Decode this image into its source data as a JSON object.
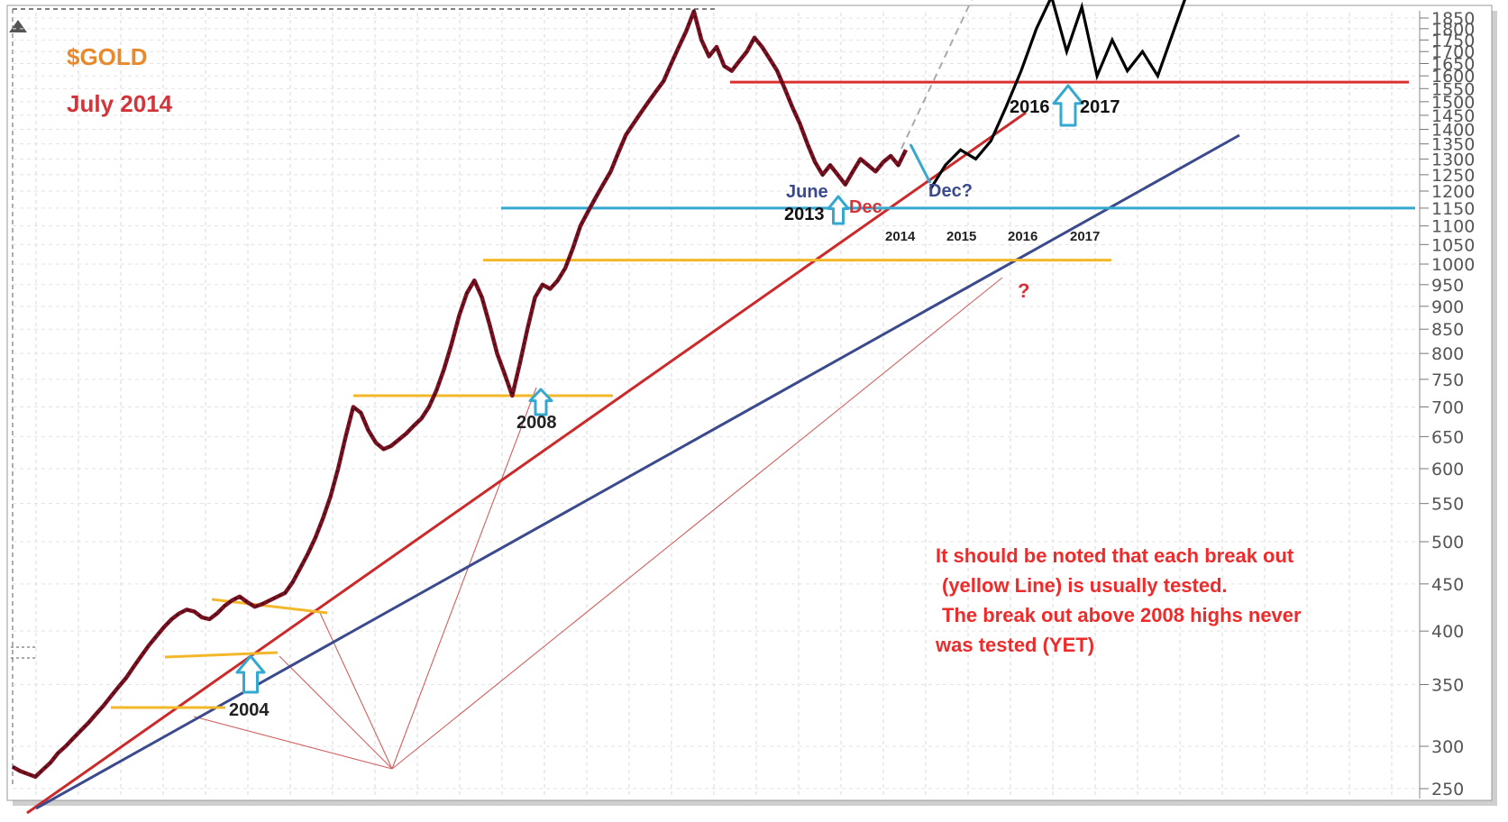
{
  "chart_data": {
    "type": "line",
    "title": "$GOLD",
    "subtitle": "July 2014",
    "yscale": "log",
    "ylim": [
      250,
      1900
    ],
    "y_ticks": [
      "1850",
      "1800",
      "1750",
      "1700",
      "1650",
      "1600",
      "1550",
      "1500",
      "1450",
      "1400",
      "1350",
      "1300",
      "1250",
      "1200",
      "1150",
      "1100",
      "1050",
      "1000",
      "950",
      "900",
      "850",
      "800",
      "750",
      "700",
      "650",
      "600",
      "550",
      "500",
      "450",
      "400",
      "350",
      "300",
      "250"
    ],
    "year_ticks": [
      "2014",
      "2015",
      "2016",
      "2017"
    ],
    "series": [
      {
        "values": [
          285,
          282,
          280,
          278,
          283,
          288,
          295,
          300,
          306,
          312,
          318,
          325,
          332,
          340,
          348,
          356,
          366,
          376,
          386,
          395,
          404,
          412,
          418,
          422,
          420,
          414,
          412,
          418,
          426,
          432,
          436,
          430,
          425,
          428,
          432,
          436,
          440,
          452,
          468,
          485,
          505,
          530,
          560,
          600,
          650,
          700,
          690,
          660,
          640,
          630,
          635,
          645,
          655,
          668,
          680,
          700,
          730,
          770,
          820,
          880,
          930,
          960,
          920,
          860,
          800,
          760,
          720,
          780,
          850,
          920,
          950,
          940,
          960,
          990,
          1040,
          1100,
          1140,
          1180,
          1220,
          1260,
          1320,
          1380,
          1420,
          1460,
          1500,
          1540,
          1580,
          1650,
          1720,
          1790,
          1880,
          1750,
          1680,
          1720,
          1640,
          1620,
          1660,
          1700,
          1760,
          1720,
          1670,
          1620,
          1550,
          1480,
          1420,
          1350,
          1290,
          1250,
          1280,
          1250,
          1220,
          1260,
          1300,
          1280,
          1260,
          1290,
          1310,
          1280,
          1330
        ]
      }
    ],
    "projection": [
      1205,
      1280,
      1330,
      1300,
      1360,
      1480,
      1620,
      1800,
      1950,
      1700,
      1900,
      1600,
      1750,
      1620,
      1700,
      1600,
      1780,
      1980
    ],
    "annotations": [
      "2004",
      "2008",
      "June",
      "2013",
      "Dec",
      "Dec?",
      "2016",
      "2017",
      "?",
      "2014",
      "2015",
      "2016",
      "2017"
    ],
    "note": [
      "It should be noted that each break out",
      "(yellow Line) is usually tested.",
      "The break out above 2008 highs never",
      "was tested  (YET)"
    ],
    "colors": {
      "price": "#7a1020",
      "trend_red": "#cc2a2a",
      "trend_blue": "#3a4a8c",
      "support_yellow": "#f2b82a",
      "support_cyan": "#35a8d0",
      "resistance_red": "#d93030",
      "title_orange": "#e8892b",
      "subtitle_red": "#d3343a",
      "note_red": "#ee2b2b"
    }
  }
}
